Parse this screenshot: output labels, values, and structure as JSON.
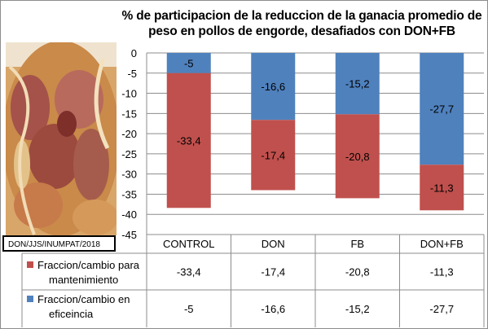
{
  "credit_text": "DON/JJS/INUMPAT/2018",
  "colors": {
    "mantenimiento": "#C0504D",
    "eficiencia": "#4F81BD"
  },
  "chart_data": {
    "type": "bar",
    "stacked": true,
    "title": "% de participacion de la reduccion de la ganacia promedio de peso  en pollos de engorde, desafiados con DON+FB",
    "categories": [
      "CONTROL",
      "DON",
      "FB",
      "DON+FB"
    ],
    "series": [
      {
        "name": "Fraccion/cambio en eficeincia",
        "color": "#4F81BD",
        "values": [
          -5,
          -16.6,
          -15.2,
          -27.7
        ]
      },
      {
        "name": "Fraccion/cambio para mantenimiento",
        "color": "#C0504D",
        "values": [
          -33.4,
          -17.4,
          -20.8,
          -11.3
        ]
      }
    ],
    "y_ticks": [
      "0",
      "-5",
      "-10",
      "-15",
      "-20",
      "-25",
      "-30",
      "-35",
      "-40",
      "-45"
    ],
    "ylim": [
      -45,
      0
    ],
    "grid": true,
    "legend": "data-table",
    "table_rows": [
      {
        "label_lines": [
          "Fraccion/cambio para",
          "mantenimiento"
        ],
        "values": [
          "-33,4",
          "-17,4",
          "-20,8",
          "-11,3"
        ]
      },
      {
        "label_lines": [
          "Fraccion/cambio en",
          "eficeincia"
        ],
        "values": [
          "-5",
          "-16,6",
          "-15,2",
          "-27,7"
        ]
      }
    ],
    "bar_labels": {
      "eficiencia": [
        "-5",
        "-16,6",
        "-15,2",
        "-27,7"
      ],
      "mantenimiento": [
        "-33,4",
        "-17,4",
        "-20,8",
        "-11,3"
      ]
    }
  }
}
